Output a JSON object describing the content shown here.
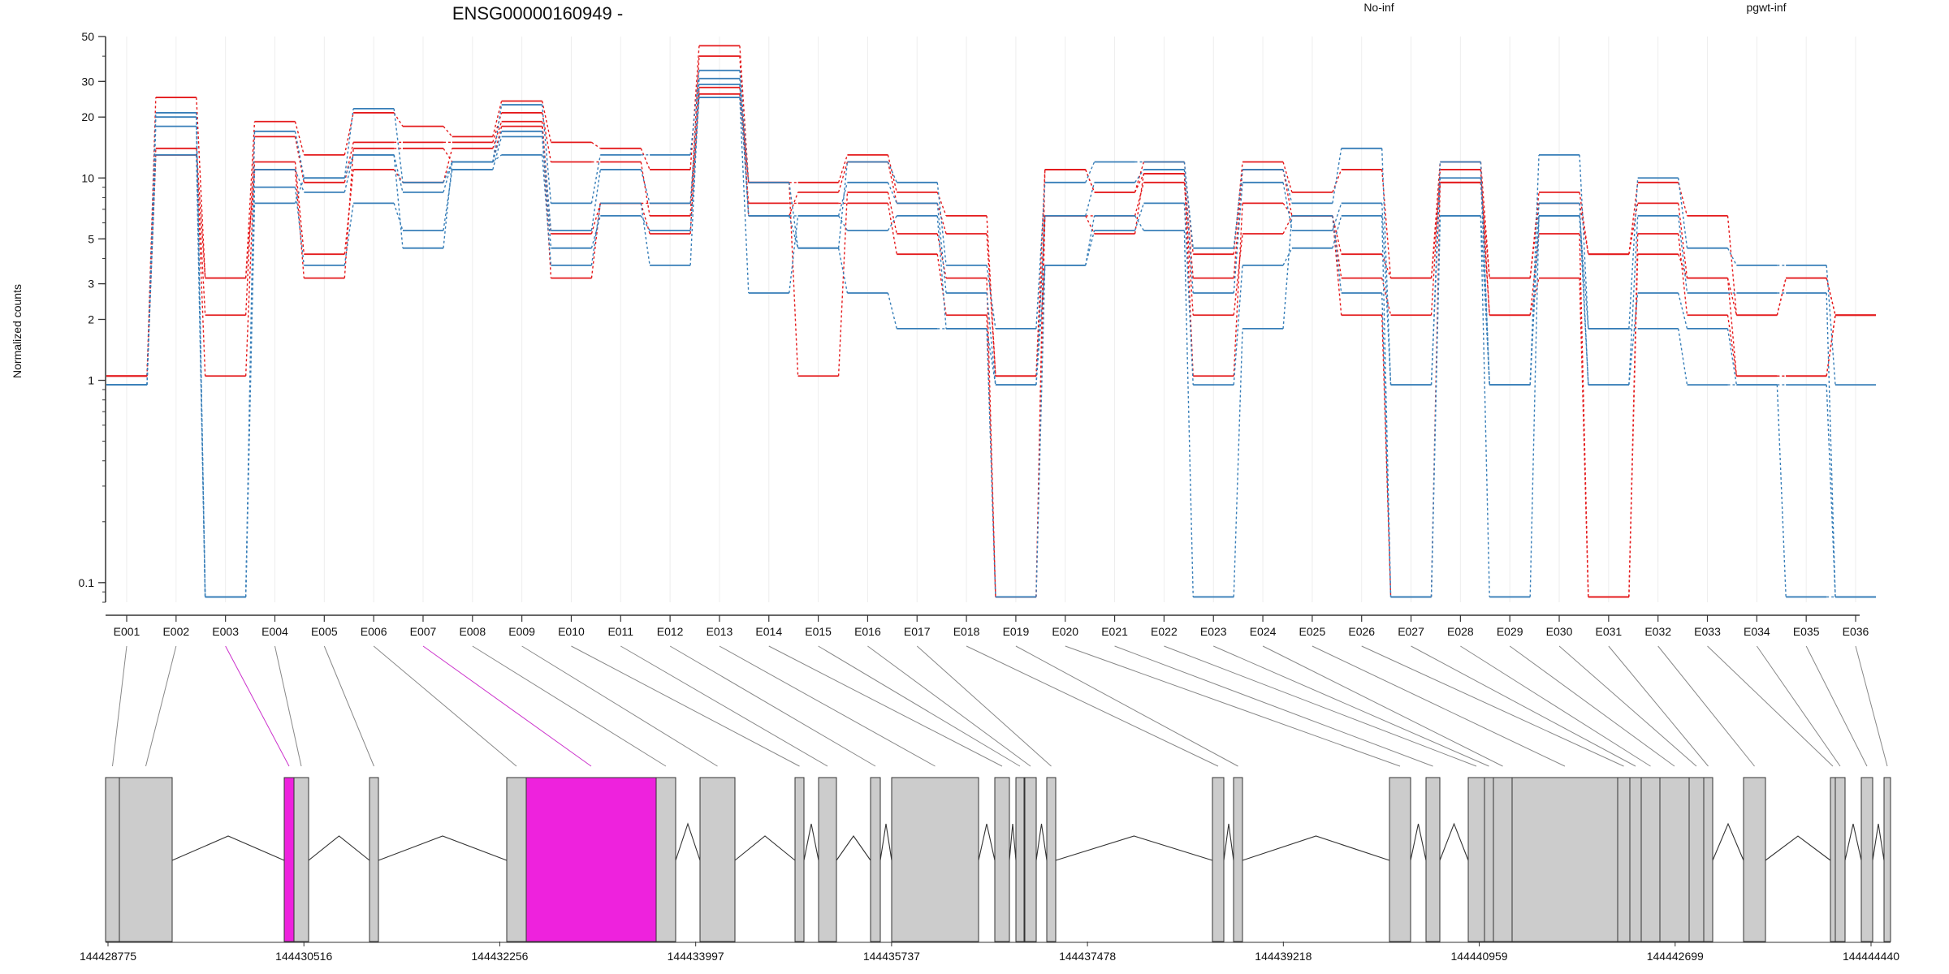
{
  "title": "ENSG00000160949 -",
  "legend_placement": "top-right",
  "colors": {
    "no_inf": "#e41a1c",
    "pgwt_inf": "#377eb8",
    "highlight": "#ee22dd",
    "exon_fill": "#cccccc"
  },
  "chart_data": {
    "type": "line",
    "title": "ENSG00000160949 -",
    "ylabel": "Normalized counts",
    "xlabel": "",
    "yscale": "log",
    "ylim": [
      0.08,
      50
    ],
    "y_ticks": [
      "50",
      "30",
      "20",
      "10",
      "5",
      "3",
      "2",
      "1",
      "0.1"
    ],
    "categories": [
      "E001",
      "E002",
      "E003",
      "E004",
      "E005",
      "E006",
      "E007",
      "E008",
      "E009",
      "E010",
      "E011",
      "E012",
      "E013",
      "E014",
      "E015",
      "E016",
      "E017",
      "E018",
      "E019",
      "E020",
      "E021",
      "E022",
      "E023",
      "E024",
      "E025",
      "E026",
      "E027",
      "E028",
      "E029",
      "E030",
      "E031",
      "E032",
      "E033",
      "E034",
      "E035",
      "E036"
    ],
    "grid": true,
    "series": [
      {
        "name": "No-inf",
        "group": "no_inf",
        "values": [
          1.05,
          25,
          3.2,
          19,
          13,
          21,
          18,
          16,
          24,
          15,
          14,
          11,
          45,
          9.5,
          9.5,
          13,
          8.5,
          6.5,
          1.05,
          11,
          8.5,
          12,
          4.2,
          12,
          8.5,
          11,
          3.2,
          12,
          3.2,
          8.5,
          4.2,
          9.5,
          6.5,
          2.1,
          3.2,
          2.1
        ]
      },
      {
        "name": "No-inf",
        "group": "no_inf",
        "values": [
          1.05,
          13,
          2.1,
          16,
          9.5,
          15,
          15,
          15,
          21,
          12,
          12,
          6.5,
          40,
          6.5,
          8.5,
          12,
          7.5,
          5.3,
          1.05,
          6.5,
          5.3,
          10.5,
          3.2,
          11,
          6.5,
          4.2,
          3.2,
          9.5,
          3.2,
          7.5,
          4.2,
          7.5,
          3.2,
          2.1,
          3.2,
          2.1
        ]
      },
      {
        "name": "No-inf",
        "group": "no_inf",
        "values": [
          1.05,
          13,
          1.05,
          12,
          4.2,
          11,
          9.5,
          14,
          19,
          5.3,
          7.5,
          5.3,
          28,
          9.5,
          1.05,
          8.5,
          5.3,
          3.2,
          0.085,
          6.5,
          6.5,
          9.5,
          2.1,
          5.3,
          6.5,
          3.2,
          2.1,
          11,
          2.1,
          5.3,
          0.085,
          5.3,
          2.1,
          1.05,
          1.05,
          2.1
        ]
      },
      {
        "name": "No-inf",
        "group": "no_inf",
        "values": [
          1.05,
          14,
          3.2,
          11,
          3.2,
          14,
          14,
          12,
          18,
          3.2,
          7.5,
          7.5,
          26,
          7.5,
          7.5,
          7.5,
          4.2,
          2.1,
          0.085,
          11,
          8.5,
          10.5,
          1.05,
          7.5,
          6.5,
          2.1,
          0.085,
          9.5,
          2.1,
          3.2,
          0.085,
          4.2,
          3.2,
          1.05,
          1.05,
          2.1
        ]
      },
      {
        "name": "pgwt-inf",
        "group": "pgwt_inf",
        "values": [
          0.95,
          21,
          0.085,
          17,
          10,
          22,
          9.5,
          12,
          23,
          7.5,
          13,
          13,
          34,
          9.5,
          4.5,
          12,
          9.5,
          3.7,
          1.8,
          9.5,
          12,
          12,
          4.5,
          11,
          7.5,
          14,
          0.95,
          12,
          0.95,
          13,
          1.8,
          10,
          4.5,
          3.7,
          3.7,
          0.95
        ]
      },
      {
        "name": "pgwt-inf",
        "group": "pgwt_inf",
        "values": [
          0.95,
          20,
          0.085,
          11,
          8.5,
          13,
          8.5,
          12,
          17,
          5.5,
          11,
          7.5,
          31,
          6.5,
          6.5,
          9.5,
          7.5,
          2.7,
          0.95,
          6.5,
          9.5,
          11,
          2.7,
          9.5,
          5.5,
          7.5,
          0.95,
          10,
          0.95,
          7.5,
          0.95,
          6.5,
          2.7,
          2.7,
          2.7,
          0.085
        ]
      },
      {
        "name": "pgwt-inf",
        "group": "pgwt_inf",
        "values": [
          0.95,
          18,
          0.085,
          9,
          3.7,
          7.5,
          5.5,
          11,
          16,
          4.5,
          6.5,
          5.5,
          25,
          2.7,
          6.5,
          5.5,
          6.5,
          1.8,
          0.95,
          3.7,
          5.5,
          7.5,
          0.95,
          3.7,
          4.5,
          6.5,
          0.085,
          6.5,
          0.085,
          6.5,
          0.95,
          2.7,
          1.8,
          0.95,
          0.085,
          0.085
        ]
      },
      {
        "name": "pgwt-inf",
        "group": "pgwt_inf",
        "values": [
          0.95,
          13,
          0.085,
          7.5,
          10,
          13,
          4.5,
          12,
          13,
          3.7,
          7.5,
          3.7,
          29,
          6.5,
          4.5,
          2.7,
          1.8,
          1.8,
          0.085,
          3.7,
          6.5,
          5.5,
          0.085,
          1.8,
          6.5,
          2.7,
          0.085,
          6.5,
          0.95,
          6.5,
          1.8,
          1.8,
          0.95,
          0.95,
          0.95,
          0.085
        ]
      }
    ],
    "gene_model": {
      "coordinate_labels": [
        "144428775",
        "144430516",
        "144432256",
        "144433997",
        "144435737",
        "144437478",
        "144439218",
        "144440959",
        "144442699",
        "144444440"
      ],
      "highlighted_exons": [
        "E003",
        "E007"
      ]
    }
  }
}
